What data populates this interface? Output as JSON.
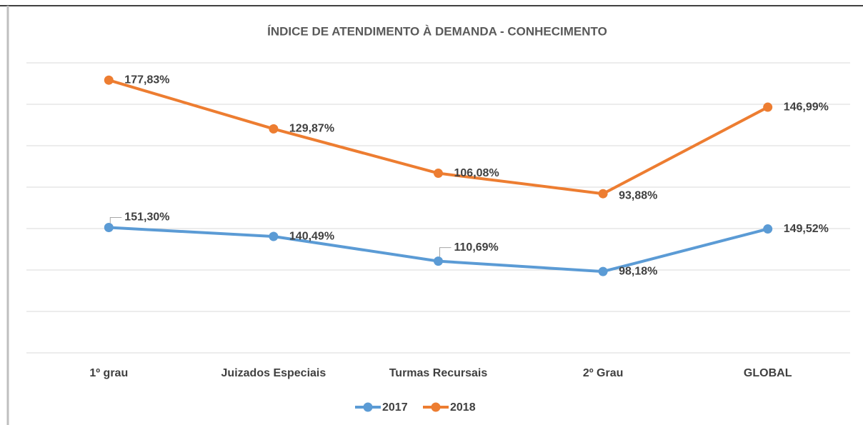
{
  "chart_data": {
    "type": "line",
    "stacked": true,
    "title": "ÍNDICE DE ATENDIMENTO À DEMANDA - CONHECIMENTO",
    "categories": [
      "1º grau",
      "Juizados Especiais",
      "Turmas Recursais",
      "2º Grau",
      "GLOBAL"
    ],
    "series": [
      {
        "name": "2017",
        "color": "#5b9bd5",
        "values": [
          151.3,
          140.49,
          110.69,
          98.18,
          149.52
        ],
        "value_labels": [
          "151,30%",
          "140,49%",
          "110,69%",
          "98,18%",
          "149,52%"
        ]
      },
      {
        "name": "2018",
        "color": "#ed7d31",
        "values": [
          177.83,
          129.87,
          106.08,
          93.88,
          146.99
        ],
        "value_labels": [
          "177,83%",
          "129,87%",
          "106,08%",
          "93,88%",
          "146,99%"
        ]
      }
    ],
    "ylim": [
      0,
      350
    ],
    "yticks": [
      0,
      50,
      100,
      150,
      200,
      250,
      300,
      350
    ],
    "grid": true,
    "legend": "bottom"
  }
}
